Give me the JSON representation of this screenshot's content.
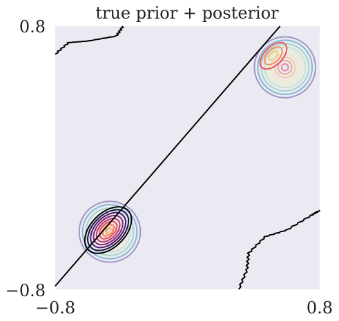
{
  "chart_data": {
    "type": "contour",
    "title": "true prior + posterior",
    "xlabel": "",
    "ylabel": "",
    "xlim": [
      -0.8,
      0.8
    ],
    "ylim": [
      -0.8,
      0.8
    ],
    "x_ticks": [
      "−0.8",
      "0.8"
    ],
    "y_ticks": [
      "−0.8",
      "0.8"
    ],
    "grid": false,
    "background": "#EAEAF2",
    "prior": {
      "colormap": "Spectral_r",
      "components": [
        {
          "center": [
            -0.47,
            -0.45
          ],
          "radius": 0.185,
          "levels": 9
        },
        {
          "center": [
            0.59,
            0.55
          ],
          "radius": 0.185,
          "levels": 9
        }
      ]
    },
    "posterior": {
      "colormap": "magma",
      "components": [
        {
          "center": [
            -0.48,
            -0.44
          ],
          "semi_axes": [
            0.105,
            0.17
          ],
          "angle_deg": 45,
          "levels": 8
        },
        {
          "center": [
            0.52,
            0.62
          ],
          "semi_axes": [
            0.055,
            0.1
          ],
          "angle_deg": 45,
          "levels": 3
        }
      ]
    },
    "boundary_lines": [
      {
        "name": "diagonal",
        "points": [
          [
            -0.8,
            -0.78
          ],
          [
            0.56,
            0.8
          ]
        ]
      },
      {
        "name": "upper-left",
        "points": [
          [
            -0.8,
            0.63
          ],
          [
            -0.72,
            0.7
          ],
          [
            -0.6,
            0.71
          ],
          [
            -0.43,
            0.74
          ],
          [
            -0.39,
            0.8
          ]
        ]
      },
      {
        "name": "lower-right",
        "points": [
          [
            0.31,
            -0.8
          ],
          [
            0.36,
            -0.68
          ],
          [
            0.37,
            -0.58
          ],
          [
            0.47,
            -0.48
          ],
          [
            0.6,
            -0.44
          ],
          [
            0.75,
            -0.35
          ],
          [
            0.8,
            -0.32
          ]
        ]
      }
    ]
  }
}
